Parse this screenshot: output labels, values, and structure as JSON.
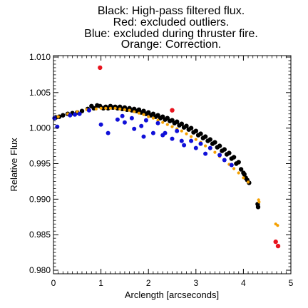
{
  "chart_data": {
    "type": "scatter",
    "title_lines": [
      "Black: High-pass filtered flux.",
      "Red: excluded outliers.",
      "Blue: excluded during thruster fire.",
      "Orange: Correction."
    ],
    "xlabel": "Arclength [arcseconds]",
    "ylabel": "Relative Flux",
    "xlim": [
      0,
      5
    ],
    "ylim": [
      0.9795,
      1.0102
    ],
    "x_ticks": [
      "0",
      "1",
      "2",
      "3",
      "4",
      "5"
    ],
    "y_ticks": [
      "0.980",
      "0.985",
      "0.990",
      "0.995",
      "1.000",
      "1.005",
      "1.010"
    ],
    "grid": false,
    "colors": {
      "black": "#000000",
      "red": "#e8141e",
      "blue": "#1010d8",
      "orange": "#f5a000"
    },
    "series": [
      {
        "color_key": "black",
        "points": [
          [
            0.05,
            1.0015
          ],
          [
            0.12,
            1.0016
          ],
          [
            0.2,
            1.0018
          ],
          [
            0.3,
            1.002
          ],
          [
            0.4,
            1.0021
          ],
          [
            0.5,
            1.0022
          ],
          [
            0.6,
            1.0024
          ],
          [
            0.72,
            1.0027
          ],
          [
            0.8,
            1.0031
          ],
          [
            0.85,
            1.0028
          ],
          [
            0.92,
            1.0032
          ],
          [
            0.98,
            1.0031
          ],
          [
            1.05,
            1.0028
          ],
          [
            1.1,
            1.003
          ],
          [
            1.15,
            1.0028
          ],
          [
            1.2,
            1.0031
          ],
          [
            1.25,
            1.0029
          ],
          [
            1.3,
            1.003
          ],
          [
            1.35,
            1.0028
          ],
          [
            1.4,
            1.003
          ],
          [
            1.45,
            1.0027
          ],
          [
            1.5,
            1.0029
          ],
          [
            1.55,
            1.0026
          ],
          [
            1.6,
            1.0028
          ],
          [
            1.65,
            1.0025
          ],
          [
            1.7,
            1.0027
          ],
          [
            1.75,
            1.0024
          ],
          [
            1.8,
            1.0026
          ],
          [
            1.85,
            1.0022
          ],
          [
            1.9,
            1.0024
          ],
          [
            1.95,
            1.002
          ],
          [
            2.0,
            1.0022
          ],
          [
            2.05,
            1.0018
          ],
          [
            2.1,
            1.002
          ],
          [
            2.15,
            1.0016
          ],
          [
            2.2,
            1.0018
          ],
          [
            2.25,
            1.0014
          ],
          [
            2.3,
            1.0016
          ],
          [
            2.35,
            1.0012
          ],
          [
            2.4,
            1.0014
          ],
          [
            2.45,
            1.001
          ],
          [
            2.5,
            1.0011
          ],
          [
            2.55,
            1.0007
          ],
          [
            2.6,
            1.0009
          ],
          [
            2.65,
            1.0004
          ],
          [
            2.7,
            1.0006
          ],
          [
            2.75,
            1.0001
          ],
          [
            2.8,
            1.0003
          ],
          [
            2.85,
            0.9998
          ],
          [
            2.9,
            1.0
          ],
          [
            2.95,
            0.9994
          ],
          [
            3.0,
            0.9996
          ],
          [
            3.05,
            0.999
          ],
          [
            3.1,
            0.9992
          ],
          [
            3.15,
            0.9986
          ],
          [
            3.2,
            0.9988
          ],
          [
            3.25,
            0.9982
          ],
          [
            3.3,
            0.9984
          ],
          [
            3.35,
            0.9978
          ],
          [
            3.4,
            0.998
          ],
          [
            3.45,
            0.9973
          ],
          [
            3.5,
            0.9975
          ],
          [
            3.55,
            0.9968
          ],
          [
            3.6,
            0.997
          ],
          [
            3.65,
            0.9963
          ],
          [
            3.7,
            0.9965
          ],
          [
            3.75,
            0.9957
          ],
          [
            3.8,
            0.9959
          ],
          [
            3.85,
            0.995
          ],
          [
            3.9,
            0.9952
          ],
          [
            3.95,
            0.9942
          ],
          [
            4.0,
            0.9937
          ],
          [
            4.02,
            0.9935
          ],
          [
            4.05,
            0.993
          ],
          [
            4.08,
            0.9927
          ],
          [
            4.12,
            0.9923
          ],
          [
            4.3,
            0.9893
          ],
          [
            4.31,
            0.9889
          ]
        ]
      },
      {
        "color_key": "orange",
        "points": [
          [
            0.1,
            1.0016
          ],
          [
            0.3,
            1.002
          ],
          [
            0.5,
            1.0023
          ],
          [
            0.7,
            1.0026
          ],
          [
            0.9,
            1.0027
          ],
          [
            1.0,
            1.0028
          ],
          [
            1.1,
            1.0028
          ],
          [
            1.2,
            1.0028
          ],
          [
            1.3,
            1.0028
          ],
          [
            1.4,
            1.0027
          ],
          [
            1.5,
            1.0026
          ],
          [
            1.6,
            1.0025
          ],
          [
            1.7,
            1.0023
          ],
          [
            1.8,
            1.0021
          ],
          [
            1.9,
            1.0019
          ],
          [
            2.0,
            1.0016
          ],
          [
            2.1,
            1.0014
          ],
          [
            2.2,
            1.0011
          ],
          [
            2.3,
            1.0008
          ],
          [
            2.4,
            1.0005
          ],
          [
            2.5,
            1.0002
          ],
          [
            2.6,
            0.9999
          ],
          [
            2.7,
            0.9996
          ],
          [
            2.8,
            0.9992
          ],
          [
            2.9,
            0.9988
          ],
          [
            3.0,
            0.9984
          ],
          [
            3.1,
            0.998
          ],
          [
            3.2,
            0.9975
          ],
          [
            3.3,
            0.9971
          ],
          [
            3.4,
            0.9966
          ],
          [
            3.5,
            0.996
          ],
          [
            3.6,
            0.9955
          ],
          [
            3.7,
            0.9949
          ],
          [
            3.8,
            0.9943
          ],
          [
            3.9,
            0.9937
          ],
          [
            4.0,
            0.993
          ],
          [
            4.1,
            0.9924
          ],
          [
            4.32,
            0.9899
          ],
          [
            4.33,
            0.9896
          ],
          [
            4.68,
            0.9865
          ],
          [
            4.72,
            0.9863
          ]
        ]
      },
      {
        "color_key": "blue",
        "points": [
          [
            0.02,
            1.0014
          ],
          [
            0.08,
            1.0002
          ],
          [
            0.35,
            1.0018
          ],
          [
            0.45,
            1.0019
          ],
          [
            0.55,
            1.002
          ],
          [
            0.75,
            1.0025
          ],
          [
            1.0,
            1.0005
          ],
          [
            1.15,
            0.9993
          ],
          [
            1.35,
            1.0012
          ],
          [
            1.45,
            1.0017
          ],
          [
            1.5,
            1.0008
          ],
          [
            1.65,
            1.0014
          ],
          [
            1.7,
            0.9999
          ],
          [
            1.85,
            1.0003
          ],
          [
            1.9,
            0.9988
          ],
          [
            1.95,
            1.0011
          ],
          [
            2.1,
            0.9993
          ],
          [
            2.2,
            1.0007
          ],
          [
            2.3,
            0.999
          ],
          [
            2.35,
            0.9993
          ],
          [
            2.5,
            0.9985
          ],
          [
            2.6,
            0.9996
          ],
          [
            2.7,
            0.9982
          ],
          [
            2.75,
            0.9976
          ],
          [
            2.9,
            0.9982
          ],
          [
            3.0,
            0.9972
          ],
          [
            3.1,
            0.9978
          ],
          [
            3.2,
            0.9964
          ],
          [
            3.3,
            0.9972
          ],
          [
            3.5,
            0.9962
          ],
          [
            3.6,
            0.9955
          ],
          [
            3.75,
            0.9948
          ]
        ]
      },
      {
        "color_key": "red",
        "points": [
          [
            0.98,
            1.0085
          ],
          [
            2.5,
            1.0025
          ],
          [
            4.68,
            0.984
          ],
          [
            4.73,
            0.9834
          ]
        ]
      }
    ]
  }
}
